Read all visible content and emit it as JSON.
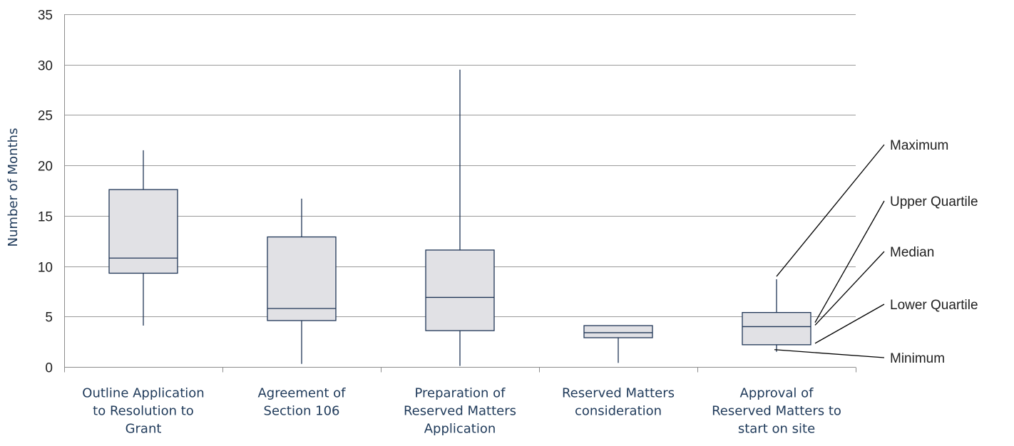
{
  "chart_data": {
    "type": "box",
    "title": "",
    "xlabel": "",
    "ylabel": "Number of Months",
    "ylim": [
      0,
      35
    ],
    "yticks": [
      0,
      5,
      10,
      15,
      20,
      25,
      30,
      35
    ],
    "grid": true,
    "categories": [
      [
        "Outline Application",
        "to Resolution to",
        "Grant"
      ],
      [
        "Agreement of",
        "Section 106"
      ],
      [
        "Preparation of",
        "Reserved Matters",
        "Application"
      ],
      [
        "Reserved Matters",
        "consideration"
      ],
      [
        "Approval of",
        "Reserved Matters to",
        "start on site"
      ]
    ],
    "boxes": [
      {
        "min": 4.1,
        "q1": 9.3,
        "median": 10.8,
        "q3": 17.6,
        "max": 21.5
      },
      {
        "min": 0.3,
        "q1": 4.6,
        "median": 5.8,
        "q3": 12.9,
        "max": 16.7
      },
      {
        "min": 0.1,
        "q1": 3.6,
        "median": 6.9,
        "q3": 11.6,
        "max": 29.5
      },
      {
        "min": 0.4,
        "q1": 2.9,
        "median": 3.4,
        "q3": 4.1,
        "max": 4.1
      },
      {
        "min": 1.5,
        "q1": 2.2,
        "median": 4.0,
        "q3": 5.4,
        "max": 8.7
      }
    ],
    "key": {
      "labels": [
        "Maximum",
        "Upper Quartile",
        "Median",
        "Lower Quartile",
        "Minimum"
      ],
      "targets": [
        "max",
        "q3",
        "median",
        "q1",
        "min"
      ],
      "anchored_to_box": 4
    }
  },
  "colors": {
    "box_fill": "#e1e1e5",
    "box_stroke": "#1f3556",
    "grid": "#9a9a9a",
    "label_text": "#1f3a5a"
  }
}
